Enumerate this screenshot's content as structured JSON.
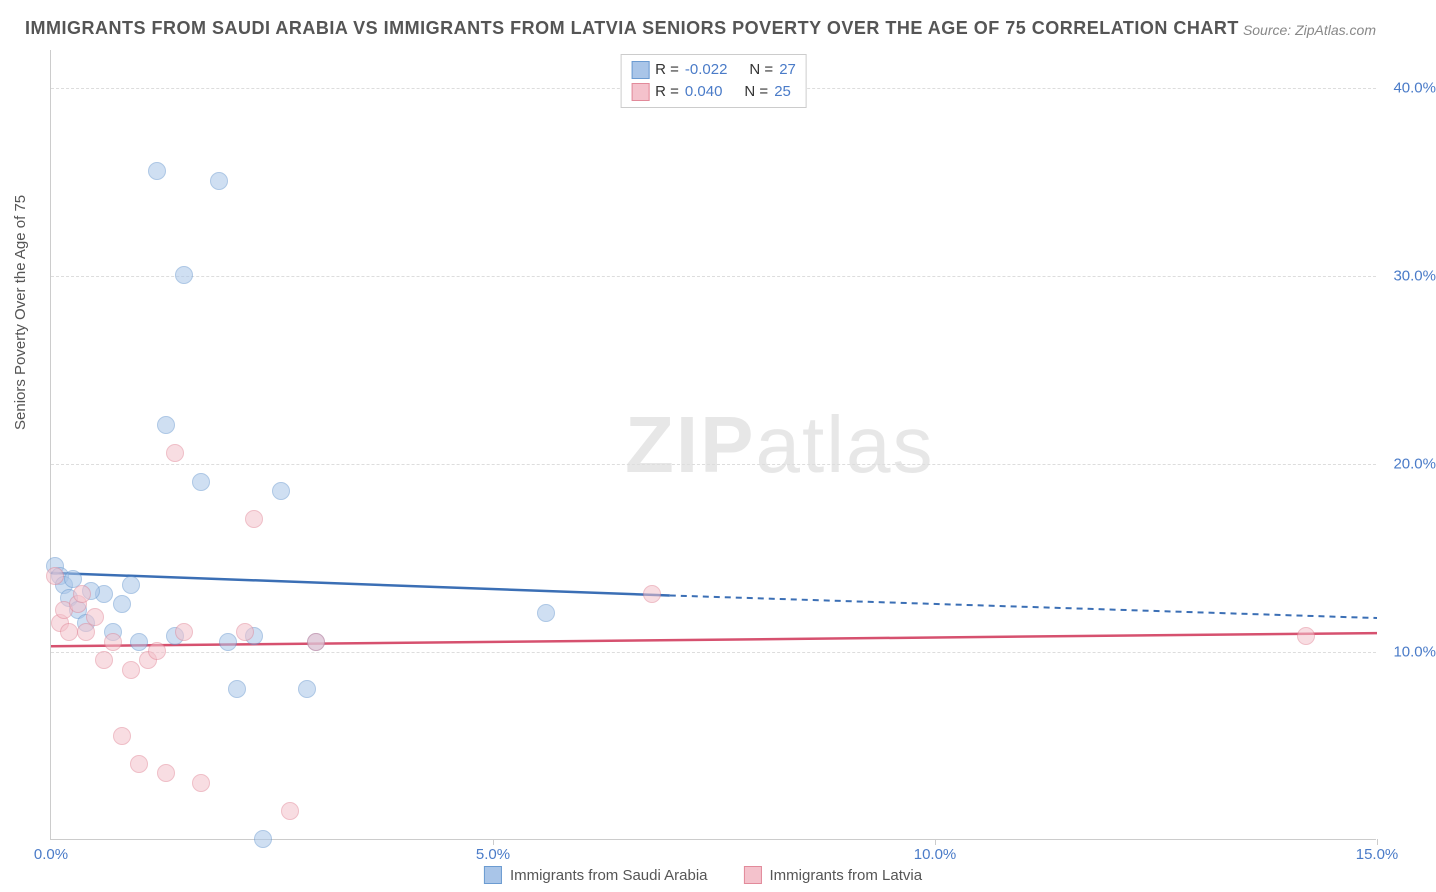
{
  "title": "IMMIGRANTS FROM SAUDI ARABIA VS IMMIGRANTS FROM LATVIA SENIORS POVERTY OVER THE AGE OF 75 CORRELATION CHART",
  "source": "Source: ZipAtlas.com",
  "ylabel": "Seniors Poverty Over the Age of 75",
  "watermark_bold": "ZIP",
  "watermark_light": "atlas",
  "chart": {
    "type": "scatter",
    "xlim": [
      0,
      15
    ],
    "ylim": [
      0,
      42
    ],
    "xticks": [
      0,
      5,
      10,
      15
    ],
    "xtick_labels": [
      "0.0%",
      "5.0%",
      "10.0%",
      "15.0%"
    ],
    "yticks": [
      10,
      20,
      30,
      40
    ],
    "ytick_labels": [
      "10.0%",
      "20.0%",
      "30.0%",
      "40.0%"
    ],
    "grid_color": "#dddddd",
    "background_color": "#ffffff",
    "axis_color": "#cccccc",
    "point_radius": 9,
    "point_opacity": 0.55
  },
  "series": [
    {
      "name": "Immigrants from Saudi Arabia",
      "color_fill": "#a9c5e8",
      "color_stroke": "#6b9bd1",
      "trend_color": "#3b6fb5",
      "R": "-0.022",
      "N": "27",
      "points": [
        [
          0.05,
          14.5
        ],
        [
          0.1,
          14.0
        ],
        [
          0.15,
          13.5
        ],
        [
          0.2,
          12.8
        ],
        [
          0.3,
          12.2
        ],
        [
          0.4,
          11.5
        ],
        [
          0.6,
          13.0
        ],
        [
          0.8,
          12.5
        ],
        [
          1.0,
          10.5
        ],
        [
          1.2,
          35.5
        ],
        [
          1.3,
          22.0
        ],
        [
          1.4,
          10.8
        ],
        [
          1.5,
          30.0
        ],
        [
          1.7,
          19.0
        ],
        [
          1.9,
          35.0
        ],
        [
          2.0,
          10.5
        ],
        [
          2.1,
          8.0
        ],
        [
          2.3,
          10.8
        ],
        [
          2.4,
          0.0
        ],
        [
          2.6,
          18.5
        ],
        [
          2.9,
          8.0
        ],
        [
          3.0,
          10.5
        ],
        [
          5.6,
          12.0
        ],
        [
          0.7,
          11.0
        ],
        [
          0.9,
          13.5
        ],
        [
          0.25,
          13.8
        ],
        [
          0.45,
          13.2
        ]
      ],
      "trend": {
        "x1": 0,
        "y1": 14.2,
        "x2": 7.0,
        "y2": 13.0,
        "x2_dash": 15,
        "y2_dash": 11.8
      }
    },
    {
      "name": "Immigrants from Latvia",
      "color_fill": "#f4c2cc",
      "color_stroke": "#e28a9a",
      "trend_color": "#d6516f",
      "R": "0.040",
      "N": "25",
      "points": [
        [
          0.05,
          14.0
        ],
        [
          0.1,
          11.5
        ],
        [
          0.15,
          12.2
        ],
        [
          0.2,
          11.0
        ],
        [
          0.3,
          12.5
        ],
        [
          0.35,
          13.0
        ],
        [
          0.5,
          11.8
        ],
        [
          0.6,
          9.5
        ],
        [
          0.7,
          10.5
        ],
        [
          0.8,
          5.5
        ],
        [
          0.9,
          9.0
        ],
        [
          1.0,
          4.0
        ],
        [
          1.1,
          9.5
        ],
        [
          1.3,
          3.5
        ],
        [
          1.4,
          20.5
        ],
        [
          1.5,
          11.0
        ],
        [
          1.7,
          3.0
        ],
        [
          2.2,
          11.0
        ],
        [
          2.3,
          17.0
        ],
        [
          2.7,
          1.5
        ],
        [
          3.0,
          10.5
        ],
        [
          6.8,
          13.0
        ],
        [
          14.2,
          10.8
        ],
        [
          0.4,
          11.0
        ],
        [
          1.2,
          10.0
        ]
      ],
      "trend": {
        "x1": 0,
        "y1": 10.3,
        "x2": 15,
        "y2": 11.0
      }
    }
  ],
  "legend_top": {
    "r_label": "R =",
    "n_label": "N ="
  },
  "legend_bottom_labels": [
    "Immigrants from Saudi Arabia",
    "Immigrants from Latvia"
  ]
}
